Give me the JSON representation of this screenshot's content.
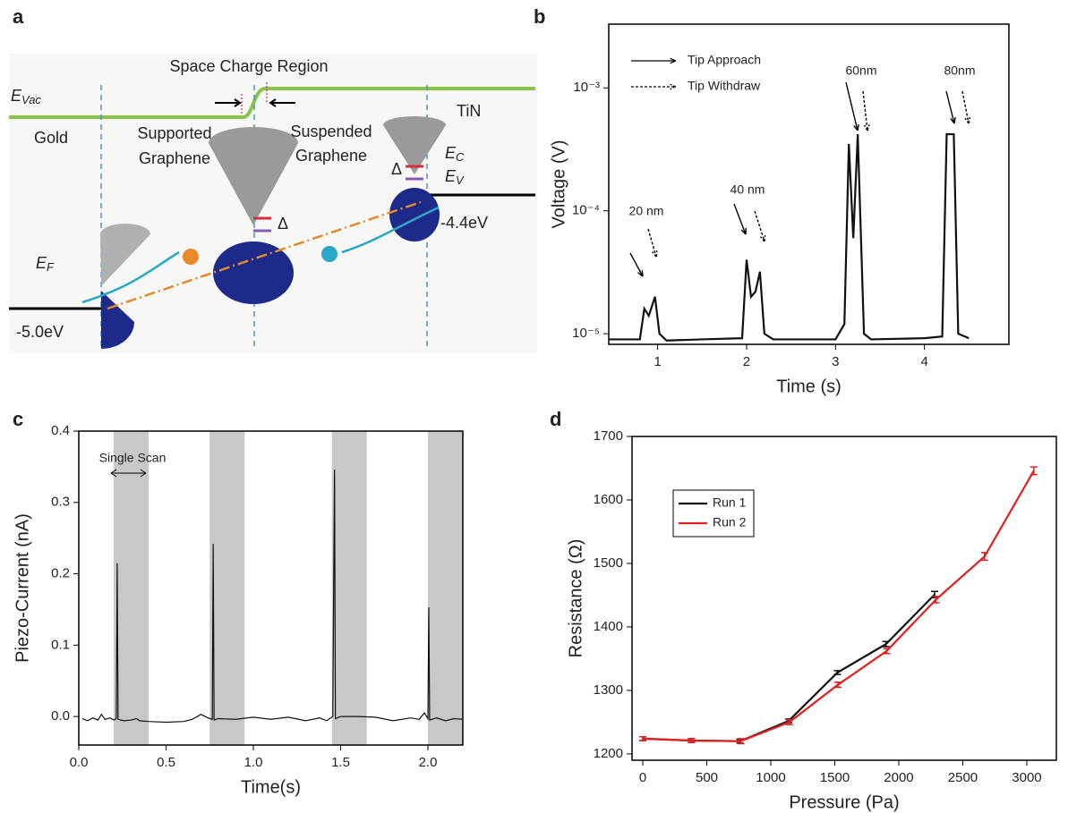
{
  "diagram": {
    "panel_label": "a",
    "space_charge": "Space Charge Region",
    "e_vac": {
      "main": "E",
      "sub": "Vac"
    },
    "tin": "TiN",
    "gold": "Gold",
    "supported": [
      "Supported",
      "Graphene"
    ],
    "suspended": [
      "Suspended",
      "Graphene"
    ],
    "e_c": {
      "main": "E",
      "sub": "C"
    },
    "e_v": {
      "main": "E",
      "sub": "V"
    },
    "e_f": {
      "main": "E",
      "sub": "F"
    },
    "delta": "Δ",
    "gold_level": "-5.0eV",
    "tin_level": "-4.4eV"
  },
  "chart_data": [
    {
      "type": "line",
      "panel_label": "b",
      "x_label": "Time (s)",
      "y_label": "Voltage (V)",
      "ylog": true,
      "xlim": [
        0.45,
        4.95
      ],
      "xticks": [
        1,
        2,
        3,
        4
      ],
      "ylim": [
        8.2e-06,
        0.0033
      ],
      "yticks": [
        {
          "value": 1e-05,
          "label": "10⁻⁵"
        },
        {
          "value": 0.0001,
          "label": "10⁻⁴"
        },
        {
          "value": 0.001,
          "label": "10⁻³"
        }
      ],
      "legend_items": [
        "Tip Approach",
        "Tip Withdraw"
      ],
      "annotations": [
        "20 nm",
        "40 nm",
        "60nm",
        "80nm"
      ],
      "series": [
        {
          "color": "#111111",
          "x": [
            0.45,
            0.8,
            0.85,
            0.9,
            0.97,
            1.02,
            1.1,
            1.5,
            1.95,
            2.0,
            2.05,
            2.1,
            2.15,
            2.2,
            2.3,
            3.0,
            3.1,
            3.15,
            3.2,
            3.25,
            3.32,
            3.4,
            4.0,
            4.2,
            4.25,
            4.33,
            4.38,
            4.5
          ],
          "values": [
            9e-06,
            9e-06,
            1.6e-05,
            1.4e-05,
            2e-05,
            1e-05,
            8.8e-06,
            9e-06,
            9.2e-06,
            4e-05,
            2e-05,
            2.2e-05,
            3.2e-05,
            1e-05,
            9e-06,
            9e-06,
            1.2e-05,
            0.00035,
            6e-05,
            0.00042,
            1e-05,
            9e-06,
            9.2e-06,
            9.5e-06,
            0.00042,
            0.00042,
            1e-05,
            9.2e-06
          ]
        }
      ]
    },
    {
      "type": "line",
      "panel_label": "c",
      "x_label": "Time(s)",
      "y_label": "Piezo-Current (nA)",
      "xlim": [
        0,
        2.2
      ],
      "xticks": [
        {
          "value": 0,
          "label": "0.0"
        },
        0.5,
        {
          "value": 1,
          "label": "1.0"
        },
        1.5,
        {
          "value": 2,
          "label": "2.0"
        }
      ],
      "ylim": [
        -0.04,
        0.4
      ],
      "yticks": [
        {
          "value": 0,
          "label": "0.0"
        },
        0.1,
        0.2,
        0.3,
        0.4
      ],
      "spans": [
        [
          0.2,
          0.4
        ],
        [
          0.75,
          0.95
        ],
        [
          1.45,
          1.65
        ],
        [
          2.0,
          2.2
        ]
      ],
      "span_color": "#c8c8c8",
      "annotations": [
        "Single Scan"
      ],
      "series": [
        {
          "color": "#111111",
          "x": [
            0.02,
            0.05,
            0.08,
            0.11,
            0.13,
            0.15,
            0.18,
            0.2,
            0.215,
            0.22,
            0.225,
            0.26,
            0.3,
            0.33,
            0.35,
            0.4,
            0.5,
            0.6,
            0.65,
            0.7,
            0.74,
            0.765,
            0.77,
            0.775,
            0.8,
            0.9,
            1.0,
            1.1,
            1.2,
            1.3,
            1.38,
            1.42,
            1.455,
            1.465,
            1.47,
            1.5,
            1.6,
            1.7,
            1.8,
            1.9,
            1.95,
            1.98,
            2.0,
            2.005,
            2.01,
            2.05,
            2.1,
            2.15,
            2.2
          ],
          "values": [
            -0.003,
            -0.006,
            -0.002,
            -0.005,
            0.003,
            -0.004,
            -0.002,
            -0.005,
            -0.003,
            0.215,
            -0.004,
            -0.006,
            -0.005,
            -0.003,
            -0.006,
            -0.007,
            -0.008,
            -0.007,
            -0.004,
            0.003,
            -0.002,
            -0.004,
            0.242,
            -0.005,
            -0.003,
            -0.004,
            -0.001,
            -0.004,
            -0.001,
            -0.006,
            -0.002,
            -0.006,
            0.0,
            0.346,
            -0.003,
            0.0,
            0.0,
            -0.001,
            -0.006,
            -0.002,
            -0.004,
            0.005,
            -0.003,
            0.153,
            -0.005,
            -0.002,
            -0.006,
            -0.003,
            -0.004
          ]
        }
      ]
    },
    {
      "type": "line",
      "panel_label": "d",
      "x_label": "Pressure (Pa)",
      "y_label": "Resistance (Ω)",
      "legend": "upper left",
      "xlim": [
        -84,
        3231
      ],
      "xticks": [
        0,
        500,
        1000,
        1500,
        2000,
        2500,
        3000
      ],
      "ylim": [
        1190,
        1700
      ],
      "yticks": [
        1200,
        1300,
        1400,
        1500,
        1600,
        1700
      ],
      "series": [
        {
          "name": "Run 1",
          "color": "#111111",
          "x": [
            0,
            380,
            760,
            1140,
            1520,
            1900,
            2280
          ],
          "values": [
            1224,
            1221,
            1220,
            1252,
            1328,
            1373,
            1451
          ],
          "errors": [
            3,
            3,
            3,
            3,
            3,
            4,
            5
          ]
        },
        {
          "name": "Run 2",
          "color": "#e02020",
          "x": [
            0,
            380,
            765,
            1145,
            1525,
            1905,
            2290,
            2670,
            3055
          ],
          "values": [
            1224,
            1221,
            1220,
            1250,
            1309,
            1362,
            1443,
            1511,
            1646
          ],
          "errors": [
            3,
            3,
            4,
            4,
            4,
            4,
            5,
            6,
            6
          ]
        }
      ]
    }
  ]
}
